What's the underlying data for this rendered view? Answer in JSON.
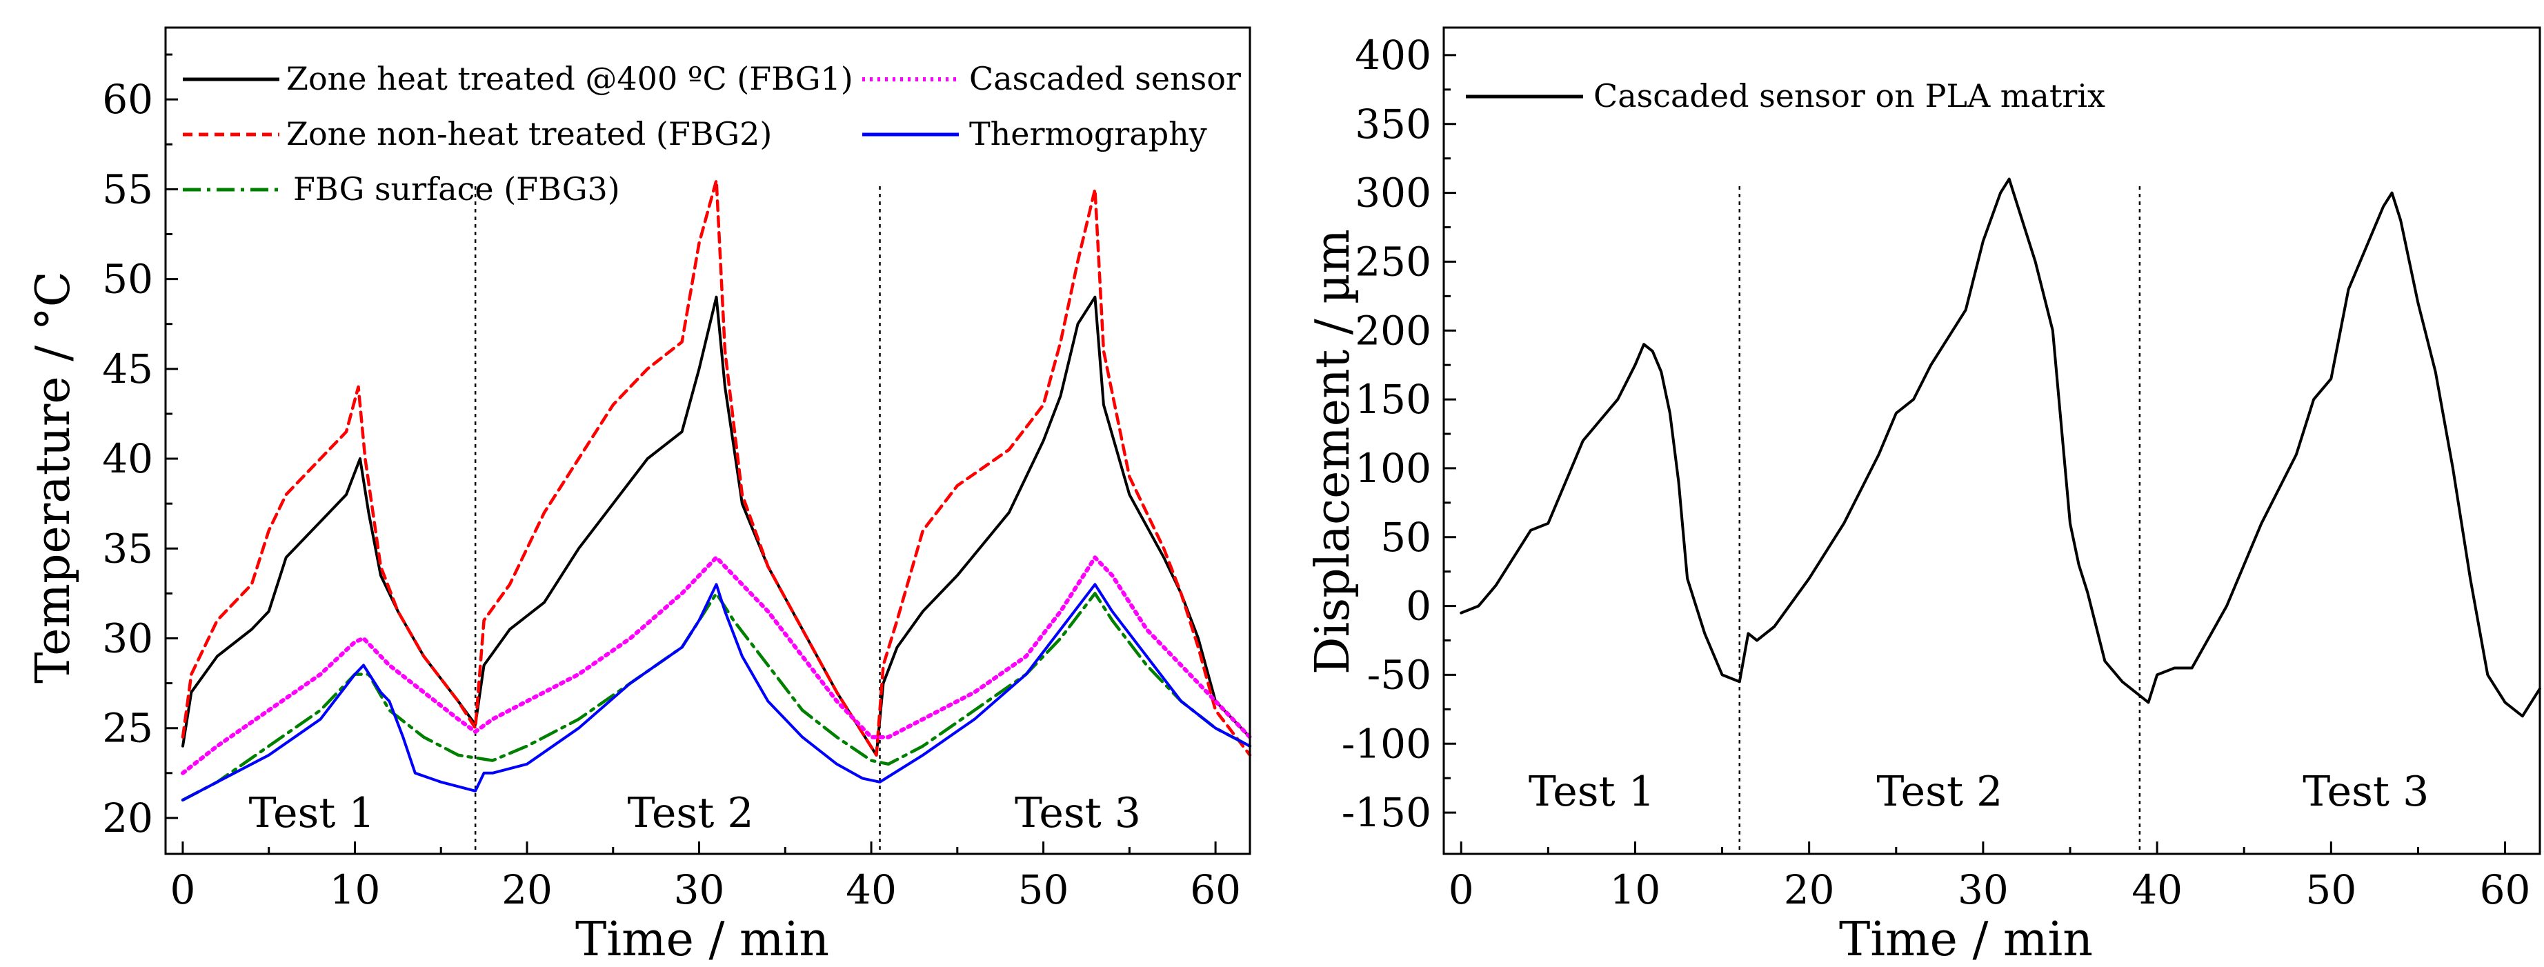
{
  "chart_data": [
    {
      "type": "line",
      "xlabel": "Time / min",
      "ylabel": "Temperature / °C",
      "xlim": [
        -1,
        62
      ],
      "ylim": [
        18,
        64
      ],
      "xticks": [
        0,
        10,
        20,
        30,
        40,
        50,
        60
      ],
      "yticks": [
        20,
        25,
        30,
        35,
        40,
        45,
        50,
        55,
        60
      ],
      "xtick_labels": [
        "0",
        "10",
        "20",
        "30",
        "40",
        "50",
        "60"
      ],
      "ytick_labels": [
        "20",
        "25",
        "30",
        "35",
        "40",
        "45",
        "50",
        "55",
        "60"
      ],
      "grid": false,
      "vlines": [
        17,
        40.5
      ],
      "annotations": [
        {
          "text": "Test 1",
          "x": 7.5,
          "y": 19.5
        },
        {
          "text": "Test 2",
          "x": 29.5,
          "y": 19.5
        },
        {
          "text": "Test 3",
          "x": 52,
          "y": 19.5
        }
      ],
      "legend": {
        "placement": "top",
        "entries": [
          {
            "label": "Zone heat treated @400 ºC (FBG1)",
            "series": "FBG1"
          },
          {
            "label": "Zone non-heat treated (FBG2)",
            "series": "FBG2"
          },
          {
            "label": "FBG surface (FBG3)",
            "series": "FBG3"
          },
          {
            "label": "Cascaded sensor",
            "series": "Cascaded"
          },
          {
            "label": "Thermography",
            "series": "Thermography"
          }
        ]
      },
      "series": [
        {
          "name": "FBG1",
          "color": "#000000",
          "dash": "solid",
          "x": [
            0,
            0.5,
            2,
            4,
            5,
            6,
            8,
            9.5,
            10.3,
            10.8,
            11.5,
            12.5,
            14,
            16,
            17,
            17.5,
            19,
            21,
            23,
            25,
            27,
            29,
            30,
            31,
            31.5,
            32.5,
            34,
            36,
            38,
            40.3,
            40.7,
            41.5,
            43,
            45,
            48,
            50,
            51,
            52,
            53,
            53.5,
            55,
            57,
            58,
            59,
            60,
            62
          ],
          "y": [
            24,
            27,
            29,
            30.5,
            31.5,
            34.5,
            36.5,
            38,
            40,
            37,
            33.5,
            31.5,
            29,
            26.5,
            25.2,
            28.5,
            30.5,
            32,
            35,
            37.5,
            40,
            41.5,
            45,
            49,
            44,
            37.5,
            34,
            30.5,
            27,
            23.5,
            27.5,
            29.5,
            31.5,
            33.5,
            37,
            41,
            43.5,
            47.5,
            49,
            43,
            38,
            34.5,
            32.5,
            30,
            26.5,
            24.5
          ]
        },
        {
          "name": "FBG2",
          "color": "#ff0000",
          "dash": "dashed",
          "x": [
            0,
            0.5,
            2,
            4,
            5,
            6,
            8,
            9.5,
            10.2,
            10.6,
            11.5,
            12.5,
            14,
            16,
            17,
            17.5,
            19,
            21,
            23,
            25,
            27,
            29,
            30,
            31,
            31.5,
            32.5,
            34,
            36,
            38,
            40.3,
            40.7,
            41.5,
            43,
            45,
            48,
            50,
            51,
            52,
            53,
            53.5,
            55,
            57,
            58,
            59,
            60,
            62
          ],
          "y": [
            24.5,
            28,
            31,
            33,
            36,
            38,
            40,
            41.5,
            44,
            40,
            34,
            31.5,
            29,
            26.5,
            25,
            31,
            33,
            37,
            40,
            43,
            45,
            46.5,
            52,
            55.5,
            46,
            38,
            34,
            30.5,
            27,
            23.5,
            28.5,
            31,
            36,
            38.5,
            40.5,
            43,
            46.5,
            51,
            55,
            46,
            39,
            35,
            32.5,
            29.5,
            26,
            23.5
          ]
        },
        {
          "name": "FBG3",
          "color": "#008000",
          "dash": "dashdot",
          "x": [
            0,
            2,
            5,
            8,
            10,
            10.8,
            12,
            14,
            16,
            18,
            20,
            23,
            26,
            29,
            31,
            32,
            34,
            36,
            38,
            40,
            41,
            43,
            46,
            49,
            51,
            53,
            54,
            56,
            58,
            60,
            62
          ],
          "y": [
            21,
            22,
            24,
            26,
            28,
            28,
            26,
            24.5,
            23.5,
            23.2,
            24,
            25.5,
            27.5,
            29.5,
            32.5,
            31,
            28.5,
            26,
            24.5,
            23.2,
            23,
            24,
            26,
            28,
            30,
            32.5,
            31,
            28.5,
            26.5,
            25,
            24
          ]
        },
        {
          "name": "Cascaded",
          "color": "#ff00ff",
          "dash": "dotted",
          "x": [
            0,
            2,
            5,
            8,
            10,
            10.5,
            12,
            14,
            16,
            17,
            18,
            20,
            23,
            26,
            29,
            31,
            32,
            34,
            36,
            38,
            40,
            41,
            43,
            46,
            49,
            51,
            53,
            54,
            56,
            58,
            60,
            62
          ],
          "y": [
            22.5,
            24,
            26,
            28,
            29.8,
            30,
            28.5,
            27,
            25.5,
            24.8,
            25.5,
            26.5,
            28,
            30,
            32.5,
            34.5,
            33.5,
            31.5,
            29,
            26.5,
            24.5,
            24.5,
            25.5,
            27,
            29,
            31.5,
            34.5,
            33.5,
            30.5,
            28.5,
            26.5,
            24.5
          ]
        },
        {
          "name": "Thermography",
          "color": "#0000ff",
          "dash": "solid",
          "x": [
            0,
            2,
            5,
            8,
            10,
            10.5,
            11.5,
            12,
            12.8,
            13.5,
            15,
            17,
            17.5,
            18,
            20,
            23,
            26,
            29,
            30,
            31,
            31.5,
            32.5,
            34,
            36,
            38,
            39.5,
            40.5,
            41,
            43,
            46,
            49,
            51,
            53,
            54,
            56,
            58,
            60,
            62
          ],
          "y": [
            21,
            22,
            23.5,
            25.5,
            28,
            28.5,
            27,
            26.5,
            24.5,
            22.5,
            22,
            21.5,
            22.5,
            22.5,
            23,
            25,
            27.5,
            29.5,
            31,
            33,
            31.5,
            29,
            26.5,
            24.5,
            23,
            22.2,
            22,
            22.3,
            23.5,
            25.5,
            28,
            30.5,
            33,
            31.5,
            29,
            26.5,
            25,
            24
          ]
        }
      ]
    },
    {
      "type": "line",
      "xlabel": "Time / min",
      "ylabel": "Displacement / µm",
      "xlim": [
        -1,
        62
      ],
      "ylim": [
        -180,
        420
      ],
      "xticks": [
        0,
        10,
        20,
        30,
        40,
        50,
        60
      ],
      "yticks": [
        -150,
        -100,
        -50,
        0,
        50,
        100,
        150,
        200,
        250,
        300,
        350,
        400
      ],
      "xtick_labels": [
        "0",
        "10",
        "20",
        "30",
        "40",
        "50",
        "60"
      ],
      "ytick_labels": [
        "-150",
        "-100",
        "-50",
        "0",
        "50",
        "100",
        "150",
        "200",
        "250",
        "300",
        "350",
        "400"
      ],
      "grid": false,
      "vlines": [
        16,
        39
      ],
      "annotations": [
        {
          "text": "Test 1",
          "x": 7.5,
          "y": -145
        },
        {
          "text": "Test 2",
          "x": 27.5,
          "y": -145
        },
        {
          "text": "Test 3",
          "x": 52,
          "y": -145
        }
      ],
      "legend": {
        "placement": "top-left",
        "entries": [
          {
            "label": "Cascaded sensor on PLA matrix",
            "series": "Displacement"
          }
        ]
      },
      "series": [
        {
          "name": "Displacement",
          "color": "#000000",
          "dash": "solid",
          "x": [
            0,
            1,
            2,
            3,
            4,
            5,
            6,
            7,
            8,
            9,
            10,
            10.5,
            11,
            11.5,
            12,
            12.5,
            13,
            13.5,
            14,
            15,
            16,
            16.5,
            17,
            18,
            20,
            22,
            24,
            25,
            26,
            27,
            28,
            29,
            30,
            31,
            31.5,
            32,
            33,
            34,
            35,
            35.5,
            36,
            37,
            38,
            39,
            39.5,
            40,
            41,
            42,
            44,
            46,
            48,
            49,
            50,
            51,
            52,
            53,
            53.5,
            54,
            55,
            56,
            57,
            58,
            59,
            60,
            61,
            62
          ],
          "y": [
            -5,
            0,
            15,
            35,
            55,
            60,
            90,
            120,
            135,
            150,
            175,
            190,
            185,
            170,
            140,
            90,
            20,
            0,
            -20,
            -50,
            -55,
            -20,
            -25,
            -15,
            20,
            60,
            110,
            140,
            150,
            175,
            195,
            215,
            265,
            300,
            310,
            290,
            250,
            200,
            60,
            30,
            10,
            -40,
            -55,
            -65,
            -70,
            -50,
            -45,
            -45,
            0,
            60,
            110,
            150,
            165,
            230,
            260,
            290,
            300,
            280,
            220,
            170,
            100,
            20,
            -50,
            -70,
            -80,
            -60
          ]
        }
      ]
    }
  ]
}
